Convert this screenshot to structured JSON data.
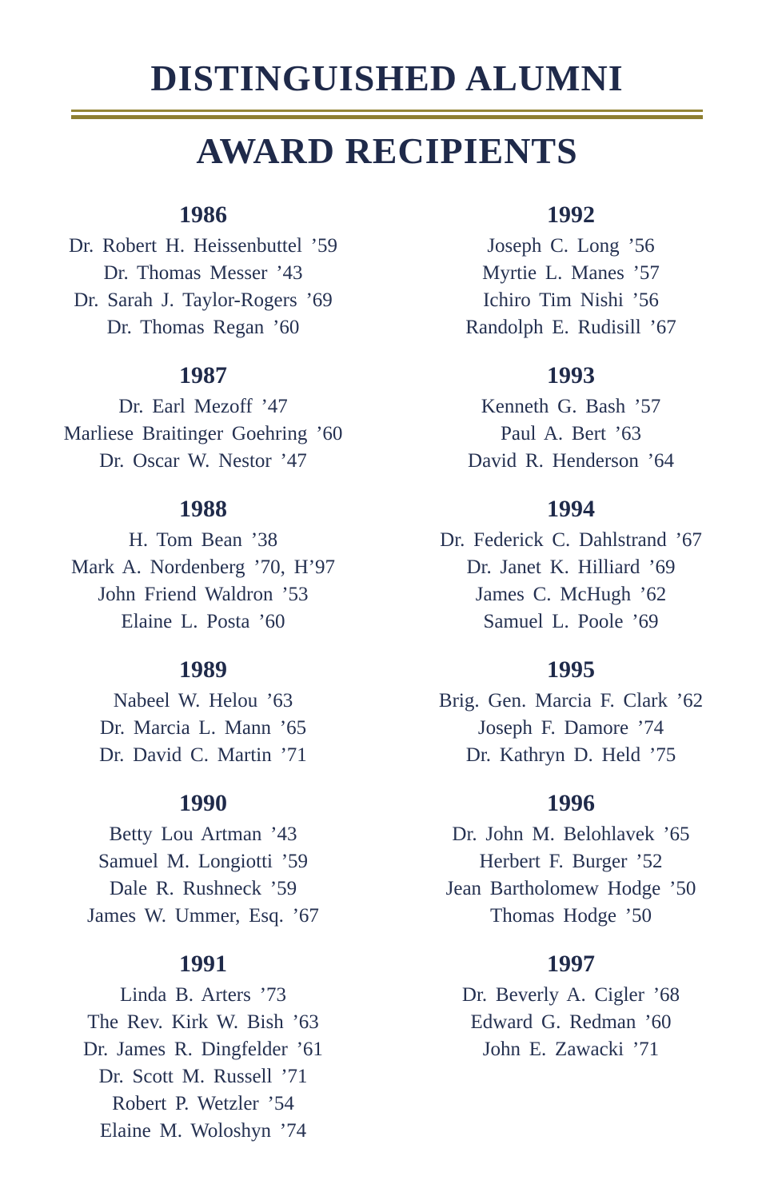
{
  "header": {
    "title_line1": "DISTINGUISHED ALUMNI",
    "title_line2": "AWARD RECIPIENTS"
  },
  "colors": {
    "text_navy": "#1f2a4a",
    "rule_gold": "#8e7f31",
    "background": "#ffffff"
  },
  "columns": [
    {
      "sections": [
        {
          "year": "1986",
          "names": [
            "Dr. Robert H. Heissenbuttel ’59",
            "Dr. Thomas Messer ’43",
            "Dr. Sarah J. Taylor-Rogers ’69",
            "Dr. Thomas Regan ’60"
          ]
        },
        {
          "year": "1987",
          "names": [
            "Dr. Earl Mezoff ’47",
            "Marliese Braitinger Goehring ’60",
            "Dr. Oscar W. Nestor ’47"
          ]
        },
        {
          "year": "1988",
          "names": [
            "H. Tom Bean ’38",
            "Mark A. Nordenberg ’70, H’97",
            "John Friend Waldron ’53",
            "Elaine L. Posta ’60"
          ]
        },
        {
          "year": "1989",
          "names": [
            "Nabeel W. Helou ’63",
            "Dr. Marcia L. Mann ’65",
            "Dr. David C. Martin ’71"
          ]
        },
        {
          "year": "1990",
          "names": [
            "Betty Lou Artman ’43",
            "Samuel M. Longiotti ’59",
            "Dale R. Rushneck ’59",
            "James W. Ummer, Esq. ’67"
          ]
        },
        {
          "year": "1991",
          "names": [
            "Linda B. Arters ’73",
            "The Rev. Kirk W. Bish ’63",
            "Dr. James R. Dingfelder ’61",
            "Dr. Scott M. Russell ’71",
            "Robert P. Wetzler ’54",
            "Elaine M. Woloshyn ’74"
          ]
        }
      ]
    },
    {
      "sections": [
        {
          "year": "1992",
          "names": [
            "Joseph C. Long ’56",
            "Myrtie L. Manes ’57",
            "Ichiro Tim Nishi ’56",
            "Randolph E. Rudisill ’67"
          ]
        },
        {
          "year": "1993",
          "names": [
            "Kenneth G. Bash ’57",
            "Paul A. Bert ’63",
            "David R. Henderson ’64"
          ]
        },
        {
          "year": "1994",
          "names": [
            "Dr. Federick C. Dahlstrand ’67",
            "Dr. Janet K. Hilliard ’69",
            "James C. McHugh ’62",
            "Samuel L. Poole ’69"
          ]
        },
        {
          "year": "1995",
          "names": [
            "Brig. Gen. Marcia F. Clark ’62",
            "Joseph F. Damore ’74",
            "Dr. Kathryn D. Held ’75"
          ]
        },
        {
          "year": "1996",
          "names": [
            "Dr. John M. Belohlavek ’65",
            "Herbert F. Burger ’52",
            "Jean Bartholomew Hodge ’50",
            "Thomas Hodge ’50"
          ]
        },
        {
          "year": "1997",
          "names": [
            "Dr. Beverly A. Cigler ’68",
            "Edward G. Redman ’60",
            "John E. Zawacki ’71"
          ]
        }
      ]
    }
  ]
}
